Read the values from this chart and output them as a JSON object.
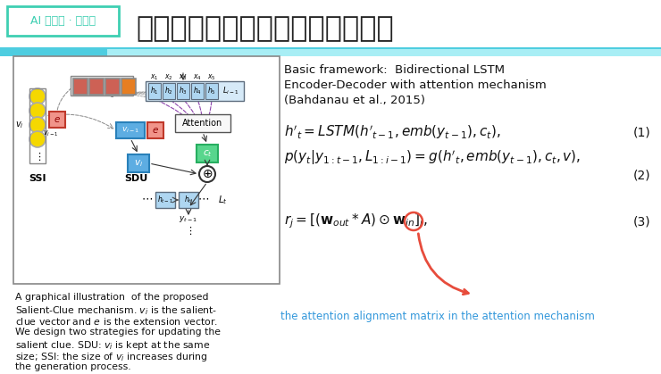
{
  "title_chinese": "基于显著性上下文机制的诗歌生成",
  "label_box_text": "AI 研习社 · 大讲堂",
  "label_box_color": "#3ecfb2",
  "label_box_bg": "#ffffff",
  "title_color": "#222222",
  "bg_color": "#ffffff",
  "header_bar_color1": "#4ecde0",
  "header_bar_color2": "#a8eef5",
  "framework_text_line1": "Basic framework:  Bidirectional LSTM",
  "framework_text_line2": "Encoder-Decoder with attention mechanism",
  "framework_text_line3": "(Bahdanau et al., 2015)",
  "eq1_num": "(1)",
  "eq2_num": "(2)",
  "eq3_num": "(3)",
  "annotation_text": "the attention alignment matrix in the attention mechanism",
  "caption_lines": [
    "A graphical illustration  of the proposed",
    "Salient-Clue mechanism. $v_i$ is the salient-",
    "clue vector and $e$ is the extension vector.",
    "We design two strategies for updating the",
    "salient clue. SDU: $v_i$ is kept at the same",
    "size; SSI: the size of $v_i$ increases during",
    "the generation process."
  ],
  "yellow_color": "#f5d800",
  "red_color": "#c0392b",
  "red_light": "#cd6155",
  "orange_color": "#e67e22",
  "blue_color": "#3498db",
  "blue_light": "#85c1e9",
  "green_color": "#27ae60",
  "green_light": "#58d68d",
  "encoder_bg": "#d6eaf8",
  "annotation_color": "#3498db"
}
